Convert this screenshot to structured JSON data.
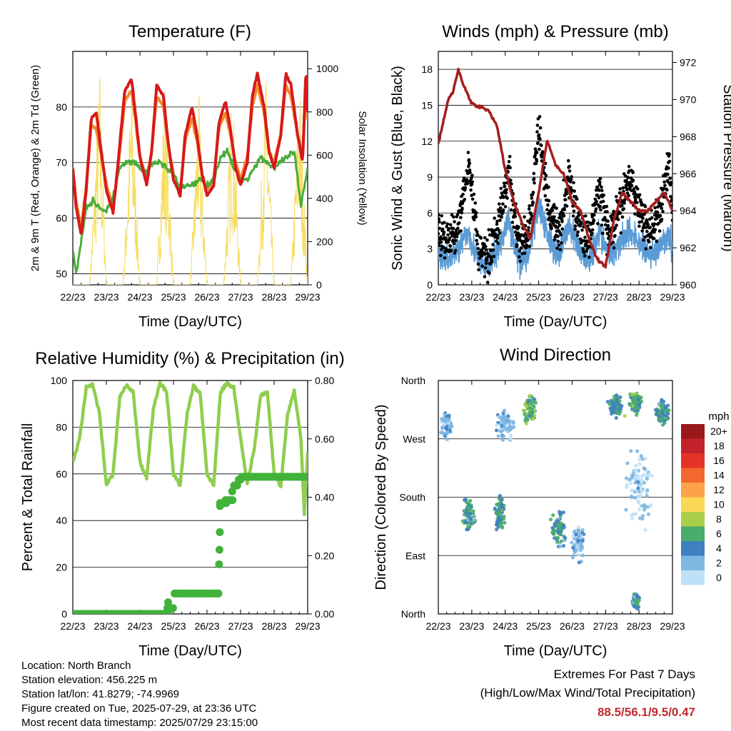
{
  "chart_data": [
    {
      "type": "line",
      "title": "Temperature (F)",
      "xlabel": "Time (Day/UTC)",
      "ylabel": "2m & 9m T (Red, Orange) & 2m Td (Green)",
      "ylabel_right": "Solar Insolation (Yellow)",
      "x_ticks": [
        "22/23",
        "23/23",
        "24/23",
        "25/23",
        "26/23",
        "27/23",
        "28/23",
        "29/23"
      ],
      "xlim": [
        0,
        7
      ],
      "ylim": [
        48,
        90
      ],
      "y_ticks": [
        50,
        60,
        70,
        80
      ],
      "y2lim": [
        0,
        1080
      ],
      "y2_ticks": [
        0,
        200,
        400,
        600,
        800,
        1000
      ],
      "colors": {
        "t2m": "#d7191c",
        "t9m": "#f28a2e",
        "td2m": "#4aac3a",
        "solar": "#f7dc5c"
      },
      "series": [
        {
          "x": [
            0,
            0.1,
            0.25,
            0.4,
            0.55,
            0.7,
            0.85,
            1.0,
            1.2,
            1.35,
            1.55,
            1.75,
            1.9,
            2.0,
            2.2,
            2.35,
            2.5,
            2.7,
            2.85,
            3.0,
            3.2,
            3.35,
            3.55,
            3.7,
            3.85,
            4.0,
            4.2,
            4.35,
            4.55,
            4.7,
            4.85,
            5.0,
            5.2,
            5.35,
            5.5,
            5.7,
            5.85,
            6.0,
            6.2,
            6.35,
            6.5,
            6.7,
            6.85,
            6.95,
            7.0
          ],
          "y": [
            69,
            62,
            57,
            65,
            78,
            79,
            72,
            65,
            61,
            70,
            83,
            85,
            77,
            71,
            66,
            72,
            84,
            82,
            73,
            67,
            64,
            75,
            80,
            75,
            68,
            64,
            66,
            77,
            81,
            76,
            69,
            66,
            70,
            82,
            86,
            80,
            72,
            69,
            75,
            86,
            84,
            75,
            70,
            87,
            79
          ]
        },
        {
          "x": [
            0,
            0.1,
            0.25,
            0.4,
            0.55,
            0.7,
            0.85,
            1.0,
            1.2,
            1.35,
            1.55,
            1.75,
            1.9,
            2.0,
            2.2,
            2.35,
            2.5,
            2.7,
            2.85,
            3.0,
            3.2,
            3.35,
            3.55,
            3.7,
            3.85,
            4.0,
            4.2,
            4.35,
            4.55,
            4.7,
            4.85,
            5.0,
            5.2,
            5.35,
            5.5,
            5.7,
            5.85,
            6.0,
            6.2,
            6.35,
            6.5,
            6.7,
            6.85,
            6.95,
            7.0
          ],
          "y": [
            69,
            63,
            58,
            66,
            77,
            76,
            71,
            66,
            62,
            69,
            81,
            83,
            76,
            71,
            67,
            72,
            82,
            80,
            73,
            68,
            65,
            74,
            78,
            74,
            68,
            65,
            67,
            76,
            79,
            75,
            70,
            67,
            71,
            80,
            84,
            79,
            72,
            70,
            75,
            84,
            82,
            75,
            71,
            85,
            78
          ]
        },
        {
          "x": [
            0,
            0.1,
            0.25,
            0.4,
            0.6,
            0.8,
            1.0,
            1.2,
            1.4,
            1.6,
            1.8,
            2.0,
            2.2,
            2.4,
            2.6,
            2.8,
            3.0,
            3.2,
            3.4,
            3.6,
            3.8,
            4.0,
            4.2,
            4.4,
            4.6,
            4.8,
            5.0,
            5.2,
            5.4,
            5.6,
            5.8,
            6.0,
            6.2,
            6.4,
            6.6,
            6.8,
            7.0
          ],
          "y": [
            54,
            50,
            56,
            62,
            63,
            62,
            61,
            64,
            69,
            70,
            70,
            69,
            68,
            70,
            70,
            69,
            68,
            65,
            66,
            66,
            67,
            66,
            67,
            71,
            72,
            69,
            67,
            67,
            69,
            71,
            70,
            69,
            70,
            71,
            72,
            62,
            69
          ]
        },
        {
          "x": [
            0.5,
            0.8,
            1.0,
            1.5,
            1.75,
            2.0,
            2.5,
            2.75,
            3.0,
            3.5,
            3.75,
            4.0,
            4.5,
            4.75,
            5.0,
            5.5,
            5.75,
            6.0,
            6.5,
            6.75,
            7.0
          ],
          "y": [
            0,
            1030,
            0,
            0,
            1000,
            0,
            0,
            1000,
            0,
            0,
            920,
            0,
            0,
            980,
            0,
            0,
            1010,
            0,
            0,
            1000,
            0
          ]
        }
      ]
    },
    {
      "type": "scatter",
      "title": "Winds (mph) & Pressure (mb)",
      "xlabel": "Time (Day/UTC)",
      "ylabel": "Sonic Wind & Gust (Blue, Black)",
      "ylabel_right": "Station Pressure (Maroon)",
      "x_ticks": [
        "22/23",
        "23/23",
        "24/23",
        "25/23",
        "26/23",
        "27/23",
        "28/23",
        "29/23"
      ],
      "xlim": [
        0,
        7
      ],
      "ylim": [
        0,
        19.5
      ],
      "y_ticks": [
        0,
        3,
        6,
        9,
        12,
        15,
        18
      ],
      "y2lim": [
        960,
        972.6
      ],
      "y2_ticks": [
        960,
        962,
        964,
        966,
        968,
        970,
        972
      ],
      "colors": {
        "wind": "#5b9bd5",
        "gust": "#000000",
        "pressure": "#a31e1e"
      },
      "series": [
        {
          "x": [
            0,
            0.3,
            0.6,
            0.9,
            1.2,
            1.5,
            1.8,
            2.1,
            2.4,
            2.7,
            3.0,
            3.3,
            3.6,
            3.9,
            4.2,
            4.5,
            4.8,
            5.1,
            5.4,
            5.7,
            6.0,
            6.3,
            6.6,
            6.9,
            7.0
          ],
          "y": [
            2.5,
            2.2,
            3.0,
            4.5,
            1.8,
            1.5,
            3.0,
            5.5,
            2.0,
            2.5,
            6.5,
            4.0,
            2.5,
            5.0,
            3.0,
            2.0,
            4.5,
            2.5,
            3.5,
            4.5,
            3.5,
            2.5,
            3.0,
            4.0,
            3.0
          ]
        },
        {
          "x": [
            0,
            0.3,
            0.6,
            0.9,
            1.2,
            1.5,
            1.8,
            2.1,
            2.4,
            2.7,
            3.0,
            3.3,
            3.6,
            3.9,
            4.2,
            4.5,
            4.8,
            5.1,
            5.4,
            5.7,
            6.0,
            6.3,
            6.6,
            6.9,
            7.0
          ],
          "y": [
            4.5,
            3.5,
            5.0,
            10.5,
            3.0,
            2.5,
            5.0,
            9.5,
            3.5,
            4.0,
            13.0,
            6.5,
            4.0,
            9.0,
            5.0,
            3.5,
            8.0,
            4.0,
            6.0,
            9.0,
            6.5,
            4.5,
            5.5,
            10.5,
            6.0
          ]
        },
        {
          "x": [
            0,
            0.15,
            0.3,
            0.45,
            0.6,
            0.75,
            1.0,
            1.25,
            1.5,
            1.75,
            2.0,
            2.25,
            2.5,
            2.6,
            2.75,
            3.0,
            3.25,
            3.5,
            3.75,
            4.0,
            4.25,
            4.5,
            4.75,
            5.0,
            5.25,
            5.5,
            5.75,
            6.0,
            6.25,
            6.5,
            6.75,
            7.0
          ],
          "y": [
            967.6,
            968.8,
            970.0,
            970.5,
            971.6,
            970.8,
            969.8,
            969.6,
            969.4,
            968.6,
            966.2,
            964.5,
            963.4,
            963.0,
            962.5,
            965.0,
            967.8,
            966.5,
            966.0,
            964.5,
            964.0,
            962.5,
            961.4,
            961.0,
            963.5,
            965.0,
            964.5,
            964.0,
            964.0,
            964.5,
            965.0,
            964.0
          ]
        }
      ]
    },
    {
      "type": "line",
      "title": "Relative Humidity (%) & Precipitation (in)",
      "xlabel": "Time (Day/UTC)",
      "ylabel": "Percent & Total Rainfall",
      "x_ticks": [
        "22/23",
        "23/23",
        "24/23",
        "25/23",
        "26/23",
        "27/23",
        "28/23",
        "29/23"
      ],
      "xlim": [
        0,
        7
      ],
      "ylim": [
        0,
        100
      ],
      "y_ticks": [
        0,
        20,
        40,
        60,
        80,
        100
      ],
      "y2lim": [
        0,
        0.8
      ],
      "y2_ticks": [
        "0.00",
        "0.20",
        "0.40",
        "0.60",
        "0.80"
      ],
      "colors": {
        "rh": "#8fce4e",
        "precip": "#41b23a"
      },
      "series": [
        {
          "x": [
            0,
            0.2,
            0.4,
            0.6,
            0.8,
            1.0,
            1.2,
            1.4,
            1.6,
            1.8,
            2.0,
            2.2,
            2.4,
            2.6,
            2.8,
            3.0,
            3.2,
            3.4,
            3.6,
            3.8,
            4.0,
            4.2,
            4.4,
            4.6,
            4.8,
            5.0,
            5.2,
            5.4,
            5.6,
            5.8,
            6.0,
            6.2,
            6.4,
            6.6,
            6.8,
            6.9,
            7.0
          ],
          "y": [
            65,
            75,
            97,
            98,
            85,
            55,
            60,
            93,
            98,
            95,
            65,
            58,
            88,
            99,
            95,
            60,
            55,
            85,
            98,
            94,
            60,
            55,
            95,
            99,
            97,
            75,
            56,
            70,
            94,
            95,
            60,
            55,
            85,
            96,
            75,
            43,
            70
          ]
        },
        {
          "x": [
            0,
            0.5,
            1.0,
            1.5,
            2.0,
            2.5,
            2.8,
            2.85,
            3.0,
            3.5,
            4.0,
            4.3,
            4.35,
            4.36,
            4.37,
            4.38,
            4.4,
            4.6,
            4.8,
            4.9,
            5.0,
            5.5,
            6.0,
            6.5,
            7.0
          ],
          "y": [
            0,
            0,
            0,
            0,
            0,
            0,
            0,
            0.02,
            0.07,
            0.07,
            0.07,
            0.07,
            0.17,
            0.22,
            0.28,
            0.37,
            0.38,
            0.39,
            0.44,
            0.46,
            0.47,
            0.47,
            0.47,
            0.47,
            0.47
          ]
        }
      ]
    },
    {
      "type": "scatter",
      "title": "Wind Direction",
      "xlabel": "Time (Day/UTC)",
      "ylabel": "Direction (Colored By Speed)",
      "x_ticks": [
        "22/23",
        "23/23",
        "24/23",
        "25/23",
        "26/23",
        "27/23",
        "28/23",
        "29/23"
      ],
      "xlim": [
        0,
        7
      ],
      "ylim": [
        0,
        360
      ],
      "y_ticks": [
        "North",
        "East",
        "South",
        "West",
        "North"
      ],
      "legend": {
        "title": "mph",
        "labels": [
          "20+",
          "18",
          "16",
          "14",
          "12",
          "10",
          "8",
          "6",
          "4",
          "2",
          "0"
        ],
        "colors": [
          "#99191a",
          "#c4222a",
          "#e43228",
          "#f4672e",
          "#fba24b",
          "#fbd855",
          "#a9cf48",
          "#4aac6b",
          "#3f80bf",
          "#7eb7e2",
          "#bfe1f7"
        ]
      },
      "clusters": [
        {
          "x": 0.25,
          "y": 290,
          "spread_x": 0.25,
          "spread_y": 25,
          "speed": 2
        },
        {
          "x": 0.9,
          "y": 155,
          "spread_x": 0.25,
          "spread_y": 35,
          "speed": 5
        },
        {
          "x": 1.85,
          "y": 155,
          "spread_x": 0.2,
          "spread_y": 35,
          "speed": 5
        },
        {
          "x": 2.0,
          "y": 290,
          "spread_x": 0.35,
          "spread_y": 30,
          "speed": 2
        },
        {
          "x": 2.75,
          "y": 315,
          "spread_x": 0.25,
          "spread_y": 30,
          "speed": 6
        },
        {
          "x": 3.6,
          "y": 130,
          "spread_x": 0.3,
          "spread_y": 35,
          "speed": 5
        },
        {
          "x": 4.2,
          "y": 110,
          "spread_x": 0.3,
          "spread_y": 40,
          "speed": 2
        },
        {
          "x": 5.3,
          "y": 320,
          "spread_x": 0.3,
          "spread_y": 25,
          "speed": 5
        },
        {
          "x": 5.9,
          "y": 325,
          "spread_x": 0.25,
          "spread_y": 25,
          "speed": 6
        },
        {
          "x": 6.7,
          "y": 310,
          "spread_x": 0.25,
          "spread_y": 30,
          "speed": 5
        },
        {
          "x": 5.9,
          "y": 20,
          "spread_x": 0.15,
          "spread_y": 15,
          "speed": 5
        },
        {
          "x": 6.0,
          "y": 200,
          "spread_x": 0.5,
          "spread_y": 80,
          "speed": 1
        }
      ]
    }
  ],
  "station": {
    "location": "Location: North Branch",
    "elevation": "Station elevation: 456.225 m",
    "latlon": "Station lat/lon: 41.8279; -74.9969",
    "created": "Figure created on Tue, 2025-07-29, at 23:36 UTC",
    "latest": "Most recent data timestamp: 2025/07/29 23:15:00"
  },
  "extremes": {
    "title": "Extremes For Past 7 Days",
    "subtitle": "(High/Low/Max Wind/Total Precipitation)",
    "values": "88.5/56.1/9.5/0.47"
  }
}
